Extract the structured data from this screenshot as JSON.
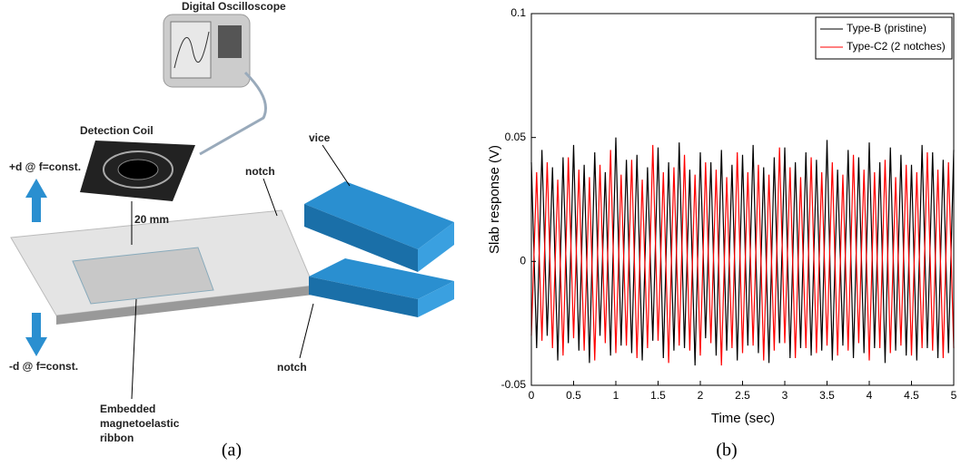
{
  "diagram": {
    "oscilloscope": "Digital Oscilloscope",
    "coil": "Detection Coil",
    "up": "+d @ f=const.",
    "down": "-d @ f=const.",
    "gap": "20 mm",
    "notch_top": "notch",
    "notch_bottom": "notch",
    "vice": "vice",
    "ribbon": [
      "Embedded",
      "magnetoelastic",
      "ribbon"
    ]
  },
  "captions": [
    "(a)",
    "(b)"
  ],
  "chart_data": {
    "type": "line",
    "xlabel": "Time (sec)",
    "ylabel": "Slab response (V)",
    "x": [
      0,
      0.0625,
      0.125,
      0.1875,
      0.25,
      0.3125,
      0.375,
      0.4375,
      0.5,
      0.5625,
      0.625,
      0.6875,
      0.75,
      0.8125,
      0.875,
      0.9375,
      1,
      1.0625,
      1.125,
      1.1875,
      1.25,
      1.3125,
      1.375,
      1.4375,
      1.5,
      1.5625,
      1.625,
      1.6875,
      1.75,
      1.8125,
      1.875,
      1.9375,
      2,
      2.0625,
      2.125,
      2.1875,
      2.25,
      2.3125,
      2.375,
      2.4375,
      2.5,
      2.5625,
      2.625,
      2.6875,
      2.75,
      2.8125,
      2.875,
      2.9375,
      3,
      3.0625,
      3.125,
      3.1875,
      3.25,
      3.3125,
      3.375,
      3.4375,
      3.5,
      3.5625,
      3.625,
      3.6875,
      3.75,
      3.8125,
      3.875,
      3.9375,
      4,
      4.0625,
      4.125,
      4.1875,
      4.25,
      4.3125,
      4.375,
      4.4375,
      4.5,
      4.5625,
      4.625,
      4.6875,
      4.75,
      4.8125,
      4.875,
      4.9375,
      5
    ],
    "series": [
      {
        "name": "Type-B (pristine)",
        "color": "#000000",
        "values": [
          0.04,
          -0.035,
          0.045,
          -0.03,
          0.038,
          -0.04,
          0.042,
          -0.033,
          0.047,
          -0.036,
          0.039,
          -0.041,
          0.044,
          -0.03,
          0.036,
          -0.038,
          0.05,
          -0.034,
          0.041,
          -0.037,
          0.043,
          -0.04,
          0.038,
          -0.032,
          0.046,
          -0.039,
          0.04,
          -0.036,
          0.048,
          -0.035,
          0.037,
          -0.042,
          0.044,
          -0.031,
          0.04,
          -0.038,
          0.045,
          -0.036,
          0.039,
          -0.04,
          0.043,
          -0.034,
          0.047,
          -0.037,
          0.038,
          -0.041,
          0.042,
          -0.033,
          0.046,
          -0.039,
          0.04,
          -0.035,
          0.044,
          -0.038,
          0.041,
          -0.036,
          0.049,
          -0.04,
          0.037,
          -0.034,
          0.045,
          -0.039,
          0.042,
          -0.037,
          0.048,
          -0.035,
          0.04,
          -0.041,
          0.046,
          -0.036,
          0.043,
          -0.038,
          0.039,
          -0.04,
          0.047,
          -0.035,
          0.044,
          -0.039,
          0.041,
          -0.037,
          0.045
        ]
      },
      {
        "name": "Type-C2 (2 notches)",
        "color": "#ff0000",
        "values": [
          -0.03,
          0.036,
          -0.032,
          0.04,
          -0.035,
          0.033,
          -0.038,
          0.042,
          -0.031,
          0.037,
          -0.036,
          0.034,
          -0.04,
          0.039,
          -0.033,
          0.045,
          -0.037,
          0.035,
          -0.034,
          0.041,
          -0.039,
          0.033,
          -0.035,
          0.047,
          -0.032,
          0.036,
          -0.041,
          0.038,
          -0.034,
          0.043,
          -0.036,
          0.035,
          -0.038,
          0.04,
          -0.033,
          0.037,
          -0.042,
          0.034,
          -0.035,
          0.044,
          -0.037,
          0.036,
          -0.034,
          0.039,
          -0.04,
          0.035,
          -0.036,
          0.046,
          -0.033,
          0.038,
          -0.039,
          0.034,
          -0.035,
          0.042,
          -0.037,
          0.036,
          -0.034,
          0.04,
          -0.038,
          0.035,
          -0.036,
          0.043,
          -0.033,
          0.037,
          -0.04,
          0.036,
          -0.035,
          0.041,
          -0.037,
          0.034,
          -0.034,
          0.039,
          -0.038,
          0.036,
          -0.035,
          0.044,
          -0.036,
          0.037,
          -0.039,
          0.04,
          -0.035
        ]
      }
    ],
    "xlim": [
      0,
      5
    ],
    "xticks": [
      0,
      0.5,
      1,
      1.5,
      2,
      2.5,
      3,
      3.5,
      4,
      4.5,
      5
    ],
    "ylim": [
      -0.05,
      0.1
    ],
    "yticks": [
      -0.05,
      0,
      0.05,
      0.1
    ],
    "legend": "top-right"
  }
}
